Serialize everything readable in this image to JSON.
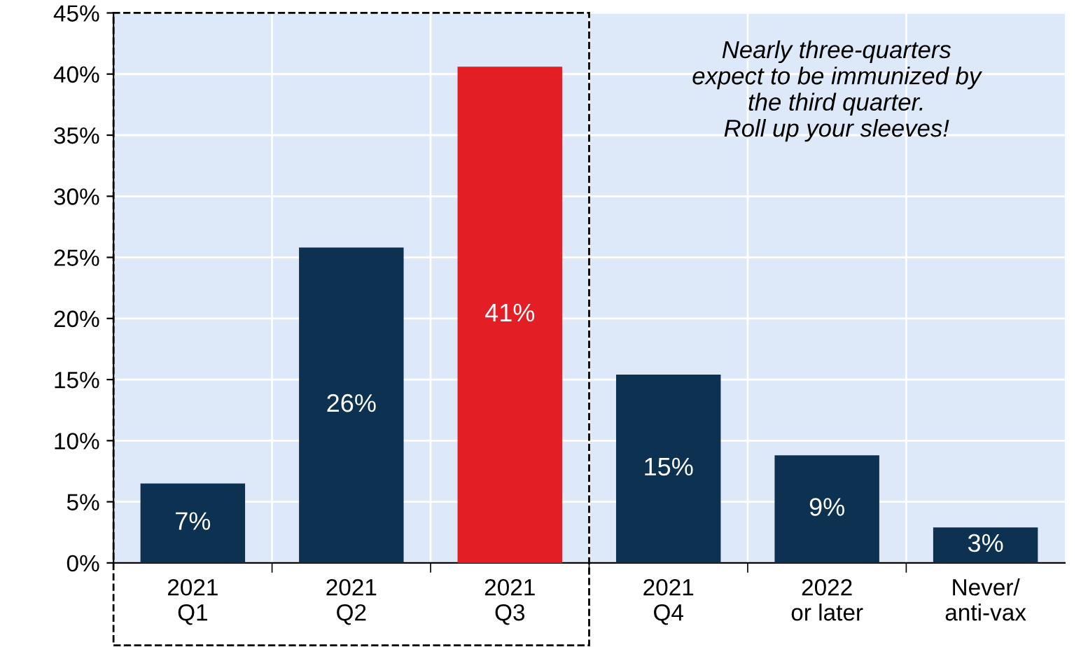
{
  "chart_data": {
    "type": "bar",
    "categories": [
      "2021\nQ1",
      "2021\nQ2",
      "2021\nQ3",
      "2021\nQ4",
      "2022\nor later",
      "Never/\nanti-vax"
    ],
    "values": [
      6.5,
      25.8,
      40.6,
      15.4,
      8.8,
      2.9
    ],
    "colors": [
      "#0d3150",
      "#0d3150",
      "#e31e24",
      "#0d3150",
      "#0d3150",
      "#0d3150"
    ],
    "value_labels": [
      "7%",
      "26%",
      "41%",
      "15%",
      "9%",
      "3%"
    ],
    "ylim": [
      0,
      45
    ],
    "yticks": [
      {
        "value": 0,
        "label": "0%"
      },
      {
        "value": 5,
        "label": "5%"
      },
      {
        "value": 10,
        "label": "10%"
      },
      {
        "value": 15,
        "label": "15%"
      },
      {
        "value": 20,
        "label": "20%"
      },
      {
        "value": 25,
        "label": "25%"
      },
      {
        "value": 30,
        "label": "30%"
      },
      {
        "value": 35,
        "label": "35%"
      },
      {
        "value": 40,
        "label": "40%"
      },
      {
        "value": 45,
        "label": "45%"
      }
    ],
    "grid": true,
    "annotations": [
      "Nearly three-quarters\nexpect to be immunized by\nthe third quarter.\nRoll up your sleeves!"
    ]
  }
}
